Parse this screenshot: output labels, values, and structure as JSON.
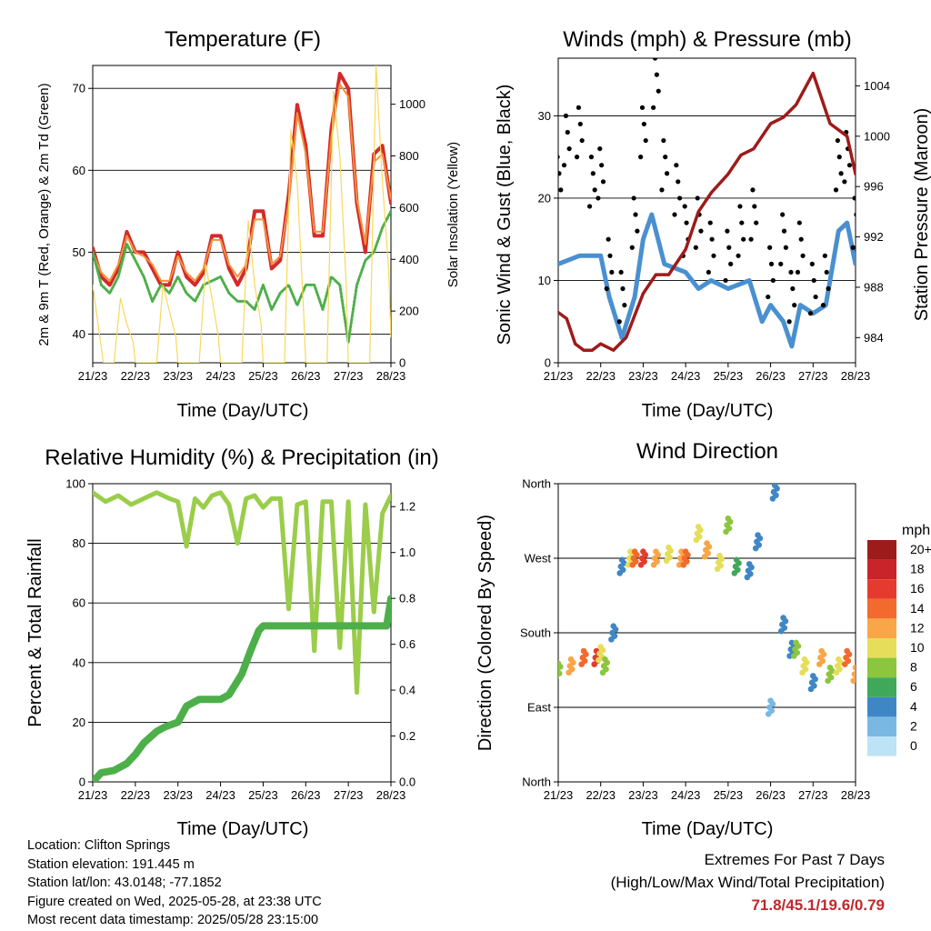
{
  "panels": {
    "temperature": {
      "title": "Temperature (F)",
      "xlabel": "Time (Day/UTC)",
      "ylabel_left": "2m & 9m T (Red, Orange) & 2m Td (Green)",
      "ylabel_right": "Solar Insolation (Yellow)"
    },
    "winds": {
      "title": "Winds (mph) & Pressure (mb)",
      "xlabel": "Time (Day/UTC)",
      "ylabel_left": "Sonic Wind & Gust (Blue, Black)",
      "ylabel_right": "Station Pressure (Maroon)"
    },
    "humidity": {
      "title": "Relative Humidity (%) & Precipitation (in)",
      "xlabel": "Time (Day/UTC)",
      "ylabel_left": "Percent & Total Rainfall"
    },
    "direction": {
      "title": "Wind Direction",
      "xlabel": "Time (Day/UTC)",
      "ylabel_left": "Direction (Colored By Speed)",
      "legend_title": "mph"
    }
  },
  "info": {
    "location": "Location: Clifton Springs",
    "elevation": "Station elevation: 191.445 m",
    "latlon": "Station lat/lon: 43.0148; -77.1852",
    "created": "Figure created on Wed, 2025-05-28, at 23:38 UTC",
    "recent": "Most recent data timestamp: 2025/05/28 23:15:00"
  },
  "extremes": {
    "line1": "Extremes For Past 7 Days",
    "line2": "(High/Low/Max Wind/Total Precipitation)",
    "values": "71.8/45.1/19.6/0.79"
  },
  "colors": {
    "temp2m": "#d42a2a",
    "temp9m": "#f5913a",
    "dewpoint": "#4daf4a",
    "insolation": "#f8d85a",
    "wind": "#4a90d0",
    "gust": "#000000",
    "pressure": "#9e1b1b",
    "rh": "#9acd4a",
    "precip": "#4daf4a"
  },
  "chart_data": [
    {
      "type": "line",
      "title": "Temperature (F)",
      "xlabel": "Time (Day/UTC)",
      "x_ticks": [
        "21/23",
        "22/23",
        "23/23",
        "24/23",
        "25/23",
        "26/23",
        "27/23",
        "28/23"
      ],
      "y_left": {
        "label": "2m & 9m T (Red, Orange) & 2m Td (Green)",
        "ticks": [
          40,
          50,
          60,
          70
        ],
        "lim": [
          36.5,
          72.8
        ]
      },
      "y_right": {
        "label": "Solar Insolation (Yellow)",
        "ticks": [
          0,
          200,
          400,
          600,
          800,
          1000
        ],
        "lim": [
          0,
          1150
        ]
      },
      "grid": "horizontal",
      "series": [
        {
          "name": "2m T",
          "axis": "left",
          "x": [
            0,
            0.2,
            0.4,
            0.6,
            0.8,
            1.0,
            1.2,
            1.4,
            1.6,
            1.8,
            2.0,
            2.2,
            2.4,
            2.6,
            2.8,
            3.0,
            3.2,
            3.4,
            3.6,
            3.8,
            4.0,
            4.2,
            4.4,
            4.6,
            4.8,
            5.0,
            5.2,
            5.4,
            5.6,
            5.8,
            6.0,
            6.2,
            6.4,
            6.6,
            6.8,
            7.0
          ],
          "values": [
            50.5,
            47,
            46,
            48,
            52.5,
            50,
            50,
            48,
            46,
            46,
            50,
            47,
            46,
            47.5,
            52,
            52,
            48,
            46,
            48,
            55,
            55,
            48,
            49,
            57,
            68,
            63,
            52,
            52,
            65,
            71.8,
            70,
            56,
            50,
            62,
            63,
            56
          ]
        },
        {
          "name": "9m T",
          "axis": "left",
          "x": [
            0,
            0.2,
            0.4,
            0.6,
            0.8,
            1.0,
            1.2,
            1.4,
            1.6,
            1.8,
            2.0,
            2.2,
            2.4,
            2.6,
            2.8,
            3.0,
            3.2,
            3.4,
            3.6,
            3.8,
            4.0,
            4.2,
            4.4,
            4.6,
            4.8,
            5.0,
            5.2,
            5.4,
            5.6,
            5.8,
            6.0,
            6.2,
            6.4,
            6.6,
            6.8,
            7.0
          ],
          "values": [
            50,
            47.5,
            46.5,
            48.5,
            52,
            50,
            49.5,
            48.5,
            46.5,
            46.5,
            49.5,
            47.5,
            46.5,
            48,
            51.5,
            51.5,
            48.5,
            47,
            48.5,
            54,
            54,
            48.5,
            49.5,
            56,
            67,
            62,
            52.5,
            52.5,
            64,
            70.5,
            69,
            56.5,
            51,
            61,
            62,
            56.5
          ]
        },
        {
          "name": "2m Td",
          "axis": "left",
          "x": [
            0,
            0.2,
            0.4,
            0.6,
            0.8,
            1.0,
            1.2,
            1.4,
            1.6,
            1.8,
            2.0,
            2.2,
            2.4,
            2.6,
            2.8,
            3.0,
            3.2,
            3.4,
            3.6,
            3.8,
            4.0,
            4.2,
            4.4,
            4.6,
            4.8,
            5.0,
            5.2,
            5.4,
            5.6,
            5.8,
            6.0,
            6.2,
            6.4,
            6.6,
            6.8,
            7.0
          ],
          "values": [
            50,
            46,
            45,
            47,
            51,
            49,
            47,
            44,
            46,
            45,
            47,
            45,
            44,
            46,
            46.5,
            47,
            45,
            44,
            44,
            43,
            46,
            43,
            45,
            46,
            43.5,
            46,
            46,
            43,
            47,
            46,
            39,
            46,
            49,
            50,
            53,
            55
          ]
        },
        {
          "name": "Solar Insolation",
          "axis": "right",
          "x": [
            0,
            0.25,
            0.5,
            0.65,
            0.8,
            0.95,
            1.0,
            1.25,
            1.5,
            1.65,
            1.8,
            1.95,
            2.0,
            2.25,
            2.5,
            2.65,
            2.8,
            2.95,
            3.0,
            3.25,
            3.5,
            3.65,
            3.8,
            3.95,
            4.0,
            4.25,
            4.5,
            4.65,
            4.8,
            4.95,
            5.0,
            5.25,
            5.5,
            5.65,
            5.8,
            5.95,
            6.0,
            6.25,
            6.5,
            6.65,
            6.8,
            6.95,
            7.0
          ],
          "values": [
            300,
            0,
            0,
            250,
            150,
            80,
            0,
            0,
            0,
            300,
            200,
            100,
            0,
            0,
            0,
            380,
            250,
            100,
            0,
            0,
            0,
            550,
            300,
            150,
            0,
            0,
            0,
            900,
            700,
            200,
            0,
            0,
            0,
            1050,
            800,
            300,
            0,
            0,
            0,
            1150,
            700,
            350,
            100
          ]
        }
      ]
    },
    {
      "type": "line",
      "title": "Winds (mph) & Pressure (mb)",
      "xlabel": "Time (Day/UTC)",
      "x_ticks": [
        "21/23",
        "22/23",
        "23/23",
        "24/23",
        "25/23",
        "26/23",
        "27/23",
        "28/23"
      ],
      "y_left": {
        "label": "Sonic Wind & Gust (Blue, Black)",
        "ticks": [
          0,
          10,
          20,
          30
        ],
        "lim": [
          0,
          37
        ]
      },
      "y_right": {
        "label": "Station Pressure (Maroon)",
        "ticks": [
          984,
          988,
          992,
          996,
          1000,
          1004
        ],
        "lim": [
          982,
          1006.2
        ]
      },
      "grid": "horizontal",
      "series": [
        {
          "name": "Sonic Wind",
          "axis": "left",
          "x": [
            0,
            0.5,
            1.0,
            1.2,
            1.5,
            1.8,
            2.0,
            2.2,
            2.5,
            3.0,
            3.3,
            3.6,
            4.0,
            4.5,
            4.8,
            5.0,
            5.3,
            5.5,
            5.7,
            6.0,
            6.3,
            6.6,
            6.8,
            7.0
          ],
          "values": [
            12,
            13,
            13,
            8,
            3,
            8,
            15,
            18,
            12,
            11,
            9,
            10,
            9,
            10,
            5,
            7,
            5,
            2,
            7,
            6,
            7,
            16,
            17,
            12
          ]
        },
        {
          "name": "Gust",
          "axis": "left",
          "x": [
            0,
            0.2,
            0.5,
            0.8,
            1.0,
            1.2,
            1.5,
            1.8,
            2.0,
            2.3,
            2.5,
            2.8,
            3.0,
            3.3,
            3.6,
            4.0,
            4.3,
            4.6,
            5.0,
            5.3,
            5.5,
            5.7,
            6.0,
            6.3,
            6.6,
            6.8,
            7.0
          ],
          "values": [
            22,
            27,
            28,
            22,
            23,
            12,
            8,
            17,
            28,
            34,
            24,
            21,
            16,
            17,
            14,
            13,
            16,
            18,
            11,
            15,
            8,
            14,
            9,
            10,
            24,
            25,
            17
          ]
        },
        {
          "name": "Station Pressure",
          "axis": "right",
          "x": [
            0,
            0.2,
            0.4,
            0.6,
            0.8,
            1.0,
            1.3,
            1.6,
            2.0,
            2.3,
            2.6,
            3.0,
            3.3,
            3.6,
            4.0,
            4.3,
            4.6,
            5.0,
            5.3,
            5.6,
            6.0,
            6.4,
            6.8,
            7.0
          ],
          "values": [
            986,
            985.5,
            983.5,
            983,
            983,
            983.5,
            983,
            984,
            987.5,
            989,
            989,
            991,
            994,
            995.5,
            997,
            998.5,
            999,
            1001,
            1001.5,
            1002.5,
            1005,
            1001,
            1000,
            997
          ]
        }
      ]
    },
    {
      "type": "line",
      "title": "Relative Humidity (%) & Precipitation (in)",
      "xlabel": "Time (Day/UTC)",
      "x_ticks": [
        "21/23",
        "22/23",
        "23/23",
        "24/23",
        "25/23",
        "26/23",
        "27/23",
        "28/23"
      ],
      "y_left": {
        "label": "Percent & Total Rainfall",
        "ticks": [
          0,
          20,
          40,
          60,
          80,
          100
        ],
        "lim": [
          0,
          100
        ]
      },
      "y_right": {
        "ticks": [
          0.0,
          0.2,
          0.4,
          0.6,
          0.8,
          1.0,
          1.2
        ],
        "lim": [
          0,
          1.3
        ]
      },
      "grid": "horizontal",
      "series": [
        {
          "name": "Relative Humidity",
          "axis": "left",
          "x": [
            0,
            0.3,
            0.6,
            0.9,
            1.2,
            1.5,
            1.8,
            2.0,
            2.2,
            2.4,
            2.6,
            2.8,
            3.0,
            3.2,
            3.4,
            3.6,
            3.8,
            4.0,
            4.2,
            4.4,
            4.6,
            4.8,
            5.0,
            5.2,
            5.4,
            5.6,
            5.8,
            6.0,
            6.2,
            6.4,
            6.6,
            6.8,
            7.0
          ],
          "values": [
            97,
            94,
            96,
            93,
            95,
            97,
            95,
            94,
            79,
            95,
            92,
            96,
            97,
            93,
            80,
            95,
            96,
            92,
            95,
            95,
            58,
            93,
            94,
            44,
            94,
            94,
            45,
            94,
            30,
            93,
            57,
            90,
            96
          ]
        },
        {
          "name": "Total Rainfall",
          "axis": "right",
          "x": [
            0,
            0.2,
            0.5,
            0.8,
            1.0,
            1.2,
            1.5,
            1.7,
            2.0,
            2.2,
            2.5,
            2.8,
            3.0,
            3.2,
            3.5,
            3.7,
            3.9,
            4.0,
            5.0,
            6.0,
            6.9,
            7.0
          ],
          "values": [
            0,
            0.04,
            0.05,
            0.08,
            0.12,
            0.17,
            0.22,
            0.24,
            0.26,
            0.33,
            0.36,
            0.36,
            0.36,
            0.38,
            0.47,
            0.57,
            0.66,
            0.68,
            0.68,
            0.68,
            0.68,
            0.8
          ]
        }
      ]
    },
    {
      "type": "scatter",
      "title": "Wind Direction",
      "xlabel": "Time (Day/UTC)",
      "x_ticks": [
        "21/23",
        "22/23",
        "23/23",
        "24/23",
        "25/23",
        "26/23",
        "27/23",
        "28/23"
      ],
      "y_left": {
        "label": "Direction (Colored By Speed)",
        "ticks": [
          "North",
          "East",
          "South",
          "West",
          "North"
        ],
        "lim": [
          0,
          360
        ]
      },
      "grid": "horizontal",
      "legend": {
        "title": "mph",
        "position": "right",
        "labels": [
          "20+",
          "18",
          "16",
          "14",
          "12",
          "10",
          "8",
          "6",
          "4",
          "2",
          "0"
        ],
        "colors": [
          "#9e1b1b",
          "#c9242a",
          "#e53b2e",
          "#f26a2e",
          "#f9a648",
          "#e6de5a",
          "#8cc63e",
          "#3fa85b",
          "#3f87c4",
          "#7ab8e4",
          "#bde3f7"
        ]
      },
      "series": [
        {
          "name": "Direction",
          "x": [
            0,
            0.3,
            0.6,
            0.9,
            1.0,
            1.1,
            1.3,
            1.5,
            1.7,
            1.8,
            2.0,
            2.3,
            2.6,
            2.9,
            3.0,
            3.3,
            3.5,
            3.8,
            4.0,
            4.2,
            4.5,
            4.7,
            5.0,
            5.1,
            5.3,
            5.5,
            5.6,
            5.8,
            6.0,
            6.2,
            6.4,
            6.6,
            6.8,
            7.0
          ],
          "values": [
            135,
            140,
            150,
            150,
            155,
            140,
            180,
            260,
            270,
            270,
            270,
            270,
            275,
            270,
            270,
            300,
            280,
            265,
            310,
            260,
            255,
            290,
            90,
            350,
            190,
            160,
            160,
            140,
            120,
            150,
            130,
            140,
            150,
            130
          ],
          "speeds": [
            8,
            12,
            14,
            16,
            10,
            8,
            4,
            4,
            10,
            14,
            16,
            12,
            10,
            12,
            14,
            10,
            12,
            10,
            8,
            6,
            4,
            4,
            2,
            4,
            4,
            4,
            8,
            10,
            4,
            12,
            8,
            10,
            14,
            12
          ]
        }
      ]
    }
  ]
}
